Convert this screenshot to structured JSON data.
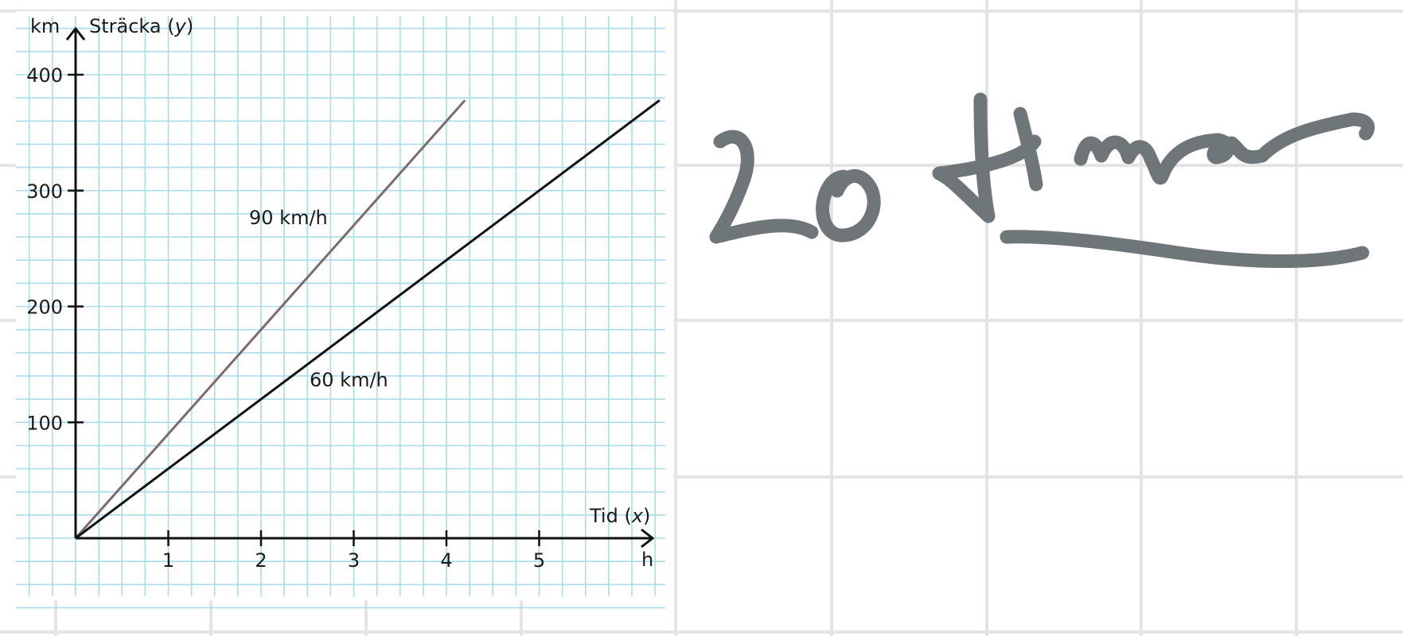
{
  "chart_data": {
    "type": "line",
    "xlabel": "Tid",
    "xlabel_var": "x",
    "x_unit": "h",
    "ylabel": "Sträcka",
    "ylabel_var": "y",
    "y_unit": "km",
    "xlim": [
      0,
      6.25
    ],
    "ylim": [
      0,
      430
    ],
    "xticks": [
      1,
      2,
      3,
      4,
      5
    ],
    "yticks": [
      100,
      200,
      300,
      400
    ],
    "grid": true,
    "series": [
      {
        "name": "90 km/h",
        "x": [
          0,
          4.2
        ],
        "y": [
          0,
          378
        ],
        "color": "#7d6b6b"
      },
      {
        "name": "60 km/h",
        "x": [
          0,
          6.3
        ],
        "y": [
          0,
          378
        ],
        "color": "#111111"
      }
    ]
  },
  "handwriting": {
    "answer": "20 timmar",
    "color": "#6f767a"
  },
  "colors": {
    "grid_minor": "#a9dcec",
    "paper_grid": "#e4e4e4",
    "axis": "#111111"
  }
}
